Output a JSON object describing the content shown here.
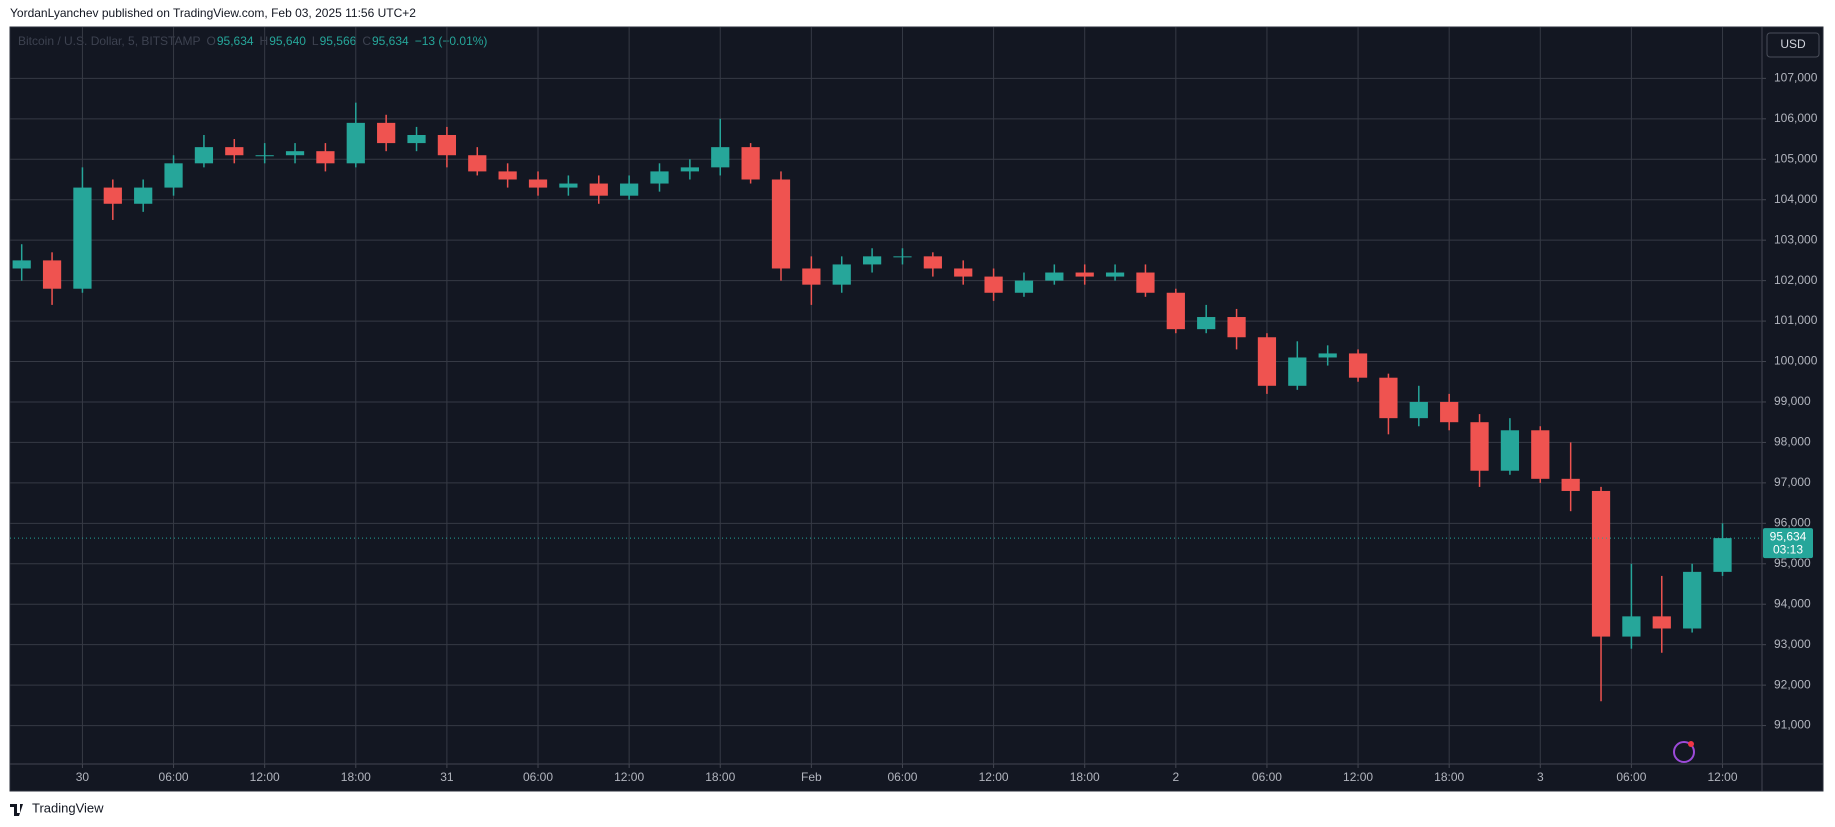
{
  "header": {
    "text": "YordanLyanchev published on TradingView.com, Feb 03, 2025 11:56 UTC+2"
  },
  "legend": {
    "symbol": "Bitcoin / U.S. Dollar, 5, BITSTAMP",
    "o_key": "O",
    "o": "95,634",
    "h_key": "H",
    "h": "95,640",
    "l_key": "L",
    "l": "95,566",
    "c_key": "C",
    "c": "95,634",
    "change": "−13 (−0.01%)"
  },
  "currency_button": "USD",
  "price_tag": {
    "price": "95,634",
    "countdown": "03:13"
  },
  "footer": {
    "brand": "TradingView"
  },
  "chart_data": {
    "type": "candlestick",
    "up_color": "#26a69a",
    "down_color": "#ef5350",
    "grid": true,
    "x": [
      -4,
      -2,
      0,
      2,
      4,
      6,
      8,
      10,
      12,
      14,
      16,
      18,
      20,
      22,
      24,
      26,
      28,
      30,
      32,
      34,
      36,
      38,
      40,
      42,
      44,
      46,
      48,
      50,
      52,
      54,
      56,
      58,
      60,
      62,
      64,
      66,
      68,
      70,
      72,
      74,
      76,
      78,
      80,
      82,
      84,
      86,
      88,
      90,
      92,
      94,
      96,
      98,
      100,
      102,
      104,
      106,
      108
    ],
    "open": [
      102300,
      102500,
      101800,
      104300,
      103900,
      104300,
      104900,
      105300,
      105100,
      105100,
      105200,
      104900,
      105900,
      105400,
      105600,
      105100,
      104700,
      104500,
      104300,
      104400,
      104100,
      104400,
      104700,
      104800,
      105300,
      104500,
      102300,
      101900,
      102400,
      102600,
      102600,
      102300,
      102100,
      101700,
      102000,
      102200,
      102100,
      102200,
      101700,
      100800,
      101100,
      100600,
      99400,
      100100,
      100200,
      99600,
      98600,
      99000,
      98500,
      97300,
      98300,
      97100,
      96800,
      93200,
      93700,
      93400,
      94800
    ],
    "high": [
      102900,
      102700,
      104800,
      104500,
      104500,
      105100,
      105600,
      105500,
      105400,
      105400,
      105400,
      106400,
      106100,
      105800,
      105800,
      105300,
      104900,
      104700,
      104600,
      104600,
      104600,
      104900,
      105000,
      106000,
      105400,
      104700,
      102600,
      102600,
      102800,
      102800,
      102700,
      102500,
      102300,
      102200,
      102400,
      102400,
      102400,
      102400,
      101800,
      101400,
      101300,
      100700,
      100500,
      100400,
      100300,
      99700,
      99400,
      99200,
      98700,
      98600,
      98400,
      98000,
      96900,
      95000,
      94700,
      95000,
      96000
    ],
    "low": [
      102000,
      101400,
      101700,
      103500,
      103700,
      104100,
      104800,
      104900,
      104900,
      104900,
      104700,
      104800,
      105200,
      105200,
      104800,
      104600,
      104300,
      104100,
      104100,
      103900,
      104000,
      104200,
      104500,
      104600,
      104400,
      102000,
      101400,
      101700,
      102200,
      102400,
      102100,
      101900,
      101500,
      101600,
      101900,
      101900,
      102000,
      101600,
      100700,
      100700,
      100300,
      99200,
      99300,
      99900,
      99500,
      98200,
      98400,
      98300,
      96900,
      97200,
      97000,
      96300,
      91600,
      92900,
      92800,
      93300,
      94700
    ],
    "close": [
      102500,
      101800,
      104300,
      103900,
      104300,
      104900,
      105300,
      105100,
      105100,
      105200,
      104900,
      105900,
      105400,
      105600,
      105100,
      104700,
      104500,
      104300,
      104400,
      104100,
      104400,
      104700,
      104800,
      105300,
      104500,
      102300,
      101900,
      102400,
      102600,
      102600,
      102300,
      102100,
      101700,
      102000,
      102200,
      102100,
      102200,
      101700,
      100800,
      101100,
      100600,
      99400,
      100100,
      100200,
      99600,
      98600,
      99000,
      98500,
      97300,
      98300,
      97100,
      96800,
      93200,
      93700,
      93400,
      94800,
      95634
    ],
    "xlim": [
      -4.77,
      110.6
    ],
    "xticks": [
      {
        "value": 0,
        "label": "30"
      },
      {
        "value": 6,
        "label": "06:00"
      },
      {
        "value": 12,
        "label": "12:00"
      },
      {
        "value": 18,
        "label": "18:00"
      },
      {
        "value": 24,
        "label": "31"
      },
      {
        "value": 30,
        "label": "06:00"
      },
      {
        "value": 36,
        "label": "12:00"
      },
      {
        "value": 42,
        "label": "18:00"
      },
      {
        "value": 48,
        "label": "Feb"
      },
      {
        "value": 54,
        "label": "06:00"
      },
      {
        "value": 60,
        "label": "12:00"
      },
      {
        "value": 66,
        "label": "18:00"
      },
      {
        "value": 72,
        "label": "2"
      },
      {
        "value": 78,
        "label": "06:00"
      },
      {
        "value": 84,
        "label": "12:00"
      },
      {
        "value": 90,
        "label": "18:00"
      },
      {
        "value": 96,
        "label": "3"
      },
      {
        "value": 102,
        "label": "06:00"
      },
      {
        "value": 108,
        "label": "12:00"
      }
    ],
    "ylim": [
      90050,
      108270
    ],
    "yticks": [
      {
        "value": 91000,
        "label": "91,000"
      },
      {
        "value": 92000,
        "label": "92,000"
      },
      {
        "value": 93000,
        "label": "93,000"
      },
      {
        "value": 94000,
        "label": "94,000"
      },
      {
        "value": 95000,
        "label": "95,000"
      },
      {
        "value": 96000,
        "label": "96,000"
      },
      {
        "value": 97000,
        "label": "97,000"
      },
      {
        "value": 98000,
        "label": "98,000"
      },
      {
        "value": 99000,
        "label": "99,000"
      },
      {
        "value": 100000,
        "label": "100,000"
      },
      {
        "value": 101000,
        "label": "101,000"
      },
      {
        "value": 102000,
        "label": "102,000"
      },
      {
        "value": 103000,
        "label": "103,000"
      },
      {
        "value": 104000,
        "label": "104,000"
      },
      {
        "value": 105000,
        "label": "105,000"
      },
      {
        "value": 106000,
        "label": "106,000"
      },
      {
        "value": 107000,
        "label": "107,000"
      }
    ]
  }
}
